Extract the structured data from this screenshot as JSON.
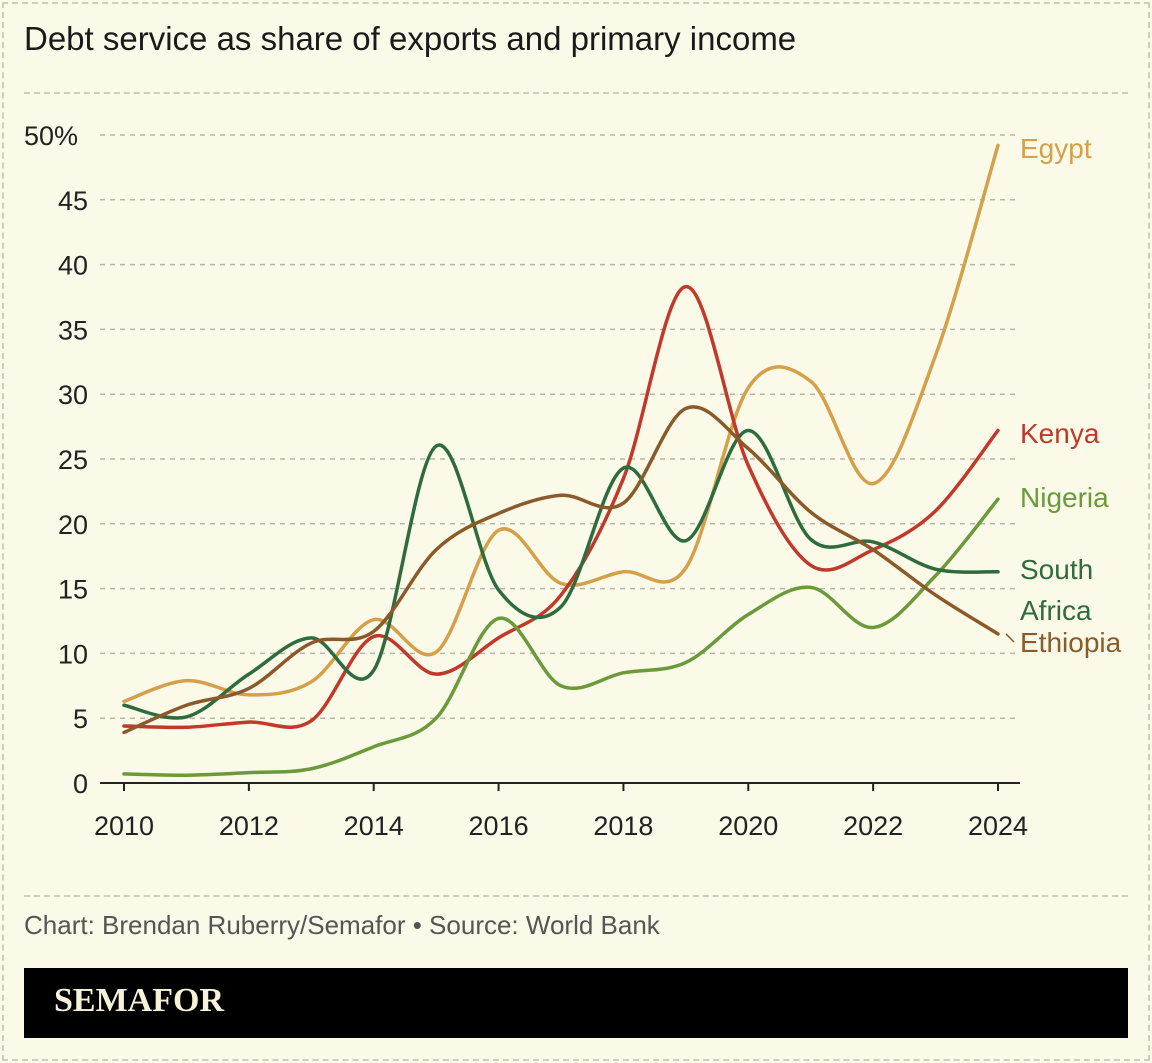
{
  "chart_data": {
    "type": "line",
    "title": "Debt service as share of exports and primary income",
    "xlabel": "",
    "ylabel": "",
    "x": [
      2010,
      2011,
      2012,
      2013,
      2014,
      2015,
      2016,
      2017,
      2018,
      2019,
      2020,
      2021,
      2022,
      2023,
      2024
    ],
    "x_ticks": [
      "2010",
      "2012",
      "2014",
      "2016",
      "2018",
      "2020",
      "2022",
      "2024"
    ],
    "y_ticks": [
      "0",
      "5",
      "10",
      "15",
      "20",
      "25",
      "30",
      "35",
      "40",
      "45",
      "50%"
    ],
    "ylim": [
      0,
      50
    ],
    "grid": "horizontal dashed",
    "legend": "direct labels at right",
    "series": [
      {
        "name": "Egypt",
        "color": "#d4a04a",
        "values": [
          6.3,
          7.9,
          6.8,
          7.8,
          12.6,
          10.1,
          19.5,
          15.4,
          16.3,
          16.6,
          30.5,
          31.0,
          23.1,
          33.0,
          49.2
        ]
      },
      {
        "name": "Kenya",
        "color": "#c0392b",
        "values": [
          4.4,
          4.3,
          4.7,
          4.8,
          11.3,
          8.4,
          11.2,
          14.5,
          23.5,
          38.3,
          24.5,
          16.8,
          18.0,
          21.0,
          27.2
        ]
      },
      {
        "name": "Nigeria",
        "color": "#6a9a3a",
        "values": [
          0.7,
          0.6,
          0.8,
          1.1,
          2.8,
          5.0,
          12.7,
          7.5,
          8.5,
          9.3,
          13.0,
          15.1,
          12.0,
          16.0,
          21.9
        ]
      },
      {
        "name": "South Africa",
        "color": "#2e6b3e",
        "values": [
          6.0,
          5.1,
          8.4,
          11.2,
          8.7,
          26.0,
          14.9,
          13.6,
          24.3,
          18.7,
          27.2,
          18.8,
          18.6,
          16.5,
          16.3
        ]
      },
      {
        "name": "Ethiopia",
        "color": "#8b5a2b",
        "values": [
          3.9,
          6.0,
          7.3,
          10.8,
          11.7,
          18.0,
          20.8,
          22.2,
          21.6,
          28.9,
          25.8,
          20.9,
          18.0,
          14.5,
          11.5
        ]
      }
    ]
  },
  "labels": {
    "south_line1": "South",
    "south_line2": "Africa"
  },
  "credit": "Chart: Brendan Ruberry/Semafor • Source: World Bank",
  "logo": "SEMAFOR"
}
